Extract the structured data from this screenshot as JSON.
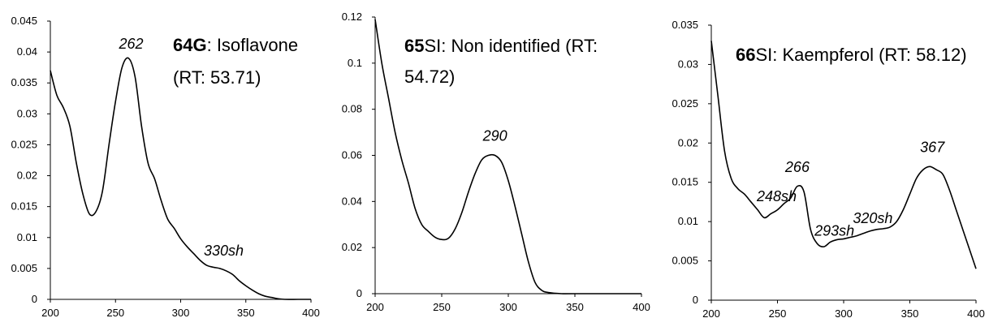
{
  "chart_data": [
    {
      "type": "line",
      "title_lines": [
        [
          {
            "text": "64G",
            "bold": true
          },
          {
            "text": ": Isoflavone",
            "bold": false
          }
        ],
        [
          {
            "text": "(RT: 53.71)",
            "bold": false
          }
        ]
      ],
      "xlim": [
        200,
        400
      ],
      "ylim": [
        0,
        0.045
      ],
      "xticks": [
        200,
        250,
        300,
        350,
        400
      ],
      "yticks": [
        0,
        0.005,
        0.01,
        0.015,
        0.02,
        0.025,
        0.03,
        0.035,
        0.04,
        0.045
      ],
      "xtick_labels": [
        "200",
        "250",
        "300",
        "350",
        "400"
      ],
      "ytick_labels": [
        "0",
        "0.005",
        "0.01",
        "0.015",
        "0.02",
        "0.025",
        "0.03",
        "0.035",
        "0.04",
        "0.045"
      ],
      "x": [
        200,
        205,
        210,
        215,
        220,
        225,
        230,
        235,
        240,
        245,
        250,
        255,
        260,
        265,
        270,
        275,
        280,
        285,
        290,
        295,
        300,
        305,
        310,
        315,
        320,
        325,
        330,
        335,
        340,
        345,
        350,
        355,
        360,
        365,
        370,
        375,
        380,
        390,
        400
      ],
      "y": [
        0.037,
        0.033,
        0.031,
        0.028,
        0.022,
        0.017,
        0.0138,
        0.0142,
        0.0175,
        0.025,
        0.032,
        0.0375,
        0.039,
        0.036,
        0.028,
        0.022,
        0.0195,
        0.016,
        0.013,
        0.0115,
        0.0098,
        0.0085,
        0.0074,
        0.0063,
        0.0055,
        0.0052,
        0.005,
        0.0046,
        0.004,
        0.003,
        0.0022,
        0.0015,
        0.0009,
        0.0005,
        0.0003,
        0.0001,
        0,
        0,
        0
      ],
      "annotations": [
        {
          "text": "262",
          "x": 262,
          "y": 0.0395
        },
        {
          "text": "330sh",
          "x": 333,
          "y": 0.0058
        }
      ]
    },
    {
      "type": "line",
      "title_lines": [
        [
          {
            "text": "65",
            "bold": true
          },
          {
            "text": "SI: Non identified (RT:",
            "bold": false
          }
        ],
        [
          {
            "text": "54.72)",
            "bold": false
          }
        ]
      ],
      "xlim": [
        200,
        400
      ],
      "ylim": [
        0,
        0.12
      ],
      "xticks": [
        200,
        250,
        300,
        350,
        400
      ],
      "yticks": [
        0,
        0.02,
        0.04,
        0.06,
        0.08,
        0.1,
        0.12
      ],
      "xtick_labels": [
        "200",
        "250",
        "300",
        "350",
        "400"
      ],
      "ytick_labels": [
        "0",
        "0.02",
        "0.04",
        "0.06",
        "0.08",
        "0.1",
        "0.12"
      ],
      "x": [
        200,
        205,
        210,
        215,
        220,
        225,
        230,
        235,
        240,
        245,
        250,
        255,
        260,
        265,
        270,
        275,
        280,
        285,
        290,
        295,
        300,
        305,
        310,
        315,
        320,
        325,
        330,
        340,
        350,
        400
      ],
      "y": [
        0.119,
        0.1,
        0.085,
        0.07,
        0.058,
        0.048,
        0.037,
        0.03,
        0.027,
        0.0245,
        0.0235,
        0.024,
        0.028,
        0.035,
        0.044,
        0.052,
        0.058,
        0.06,
        0.06,
        0.057,
        0.049,
        0.038,
        0.026,
        0.014,
        0.005,
        0.0015,
        0.0005,
        0,
        0,
        0
      ],
      "annotations": [
        {
          "text": "290",
          "x": 290,
          "y": 0.0635
        }
      ]
    },
    {
      "type": "line",
      "title_lines": [
        [
          {
            "text": "66",
            "bold": true
          },
          {
            "text": "SI: Kaempferol (RT: 58.12)",
            "bold": false
          }
        ]
      ],
      "xlim": [
        200,
        400
      ],
      "ylim": [
        0,
        0.035
      ],
      "xticks": [
        200,
        250,
        300,
        350,
        400
      ],
      "yticks": [
        0,
        0.005,
        0.01,
        0.015,
        0.02,
        0.025,
        0.03,
        0.035
      ],
      "xtick_labels": [
        "200",
        "250",
        "300",
        "350",
        "400"
      ],
      "ytick_labels": [
        "0",
        "0.005",
        "0.01",
        "0.015",
        "0.02",
        "0.025",
        "0.03",
        "0.035"
      ],
      "x": [
        200,
        205,
        210,
        215,
        220,
        225,
        230,
        235,
        240,
        245,
        250,
        255,
        260,
        265,
        270,
        275,
        280,
        285,
        290,
        295,
        300,
        305,
        310,
        315,
        320,
        325,
        330,
        335,
        340,
        345,
        350,
        355,
        360,
        365,
        370,
        375,
        380,
        385,
        390,
        395,
        400
      ],
      "y": [
        0.033,
        0.026,
        0.019,
        0.0155,
        0.0142,
        0.0135,
        0.0125,
        0.0115,
        0.0105,
        0.011,
        0.0115,
        0.0123,
        0.013,
        0.0145,
        0.0138,
        0.009,
        0.0072,
        0.0068,
        0.0074,
        0.0077,
        0.0078,
        0.008,
        0.0082,
        0.0085,
        0.0088,
        0.009,
        0.0091,
        0.0093,
        0.01,
        0.0115,
        0.0135,
        0.0155,
        0.0166,
        0.017,
        0.0166,
        0.016,
        0.014,
        0.0115,
        0.009,
        0.0065,
        0.004
      ],
      "annotations": [
        {
          "text": "248sh",
          "x": 250,
          "y": 0.012
        },
        {
          "text": "266",
          "x": 265,
          "y": 0.0155
        },
        {
          "text": "293sh",
          "x": 293,
          "y": 0.0078
        },
        {
          "text": "320sh",
          "x": 322,
          "y": 0.0094
        },
        {
          "text": "367",
          "x": 367,
          "y": 0.018
        }
      ]
    }
  ]
}
